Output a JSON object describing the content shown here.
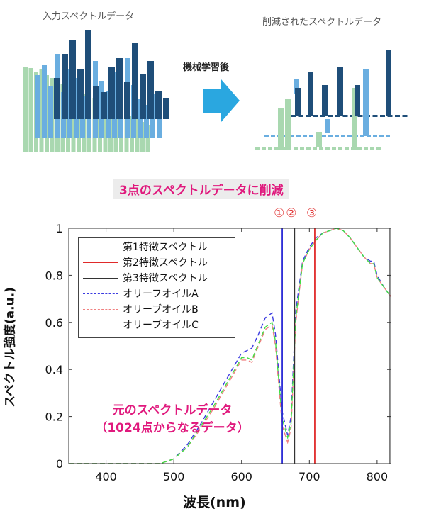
{
  "top": {
    "input_title": "入力スペクトルデータ",
    "reduced_title": "削減されたスペクトルデータ",
    "ml_label": "機械学習後",
    "banner": "3点のスペクトルデータに削減"
  },
  "markers": [
    "①",
    "②",
    "③"
  ],
  "annotation": {
    "line1": "元のスペクトルデータ",
    "line2": "（1024点からなるデータ）"
  },
  "colors": {
    "feature1": "#2a2ad6",
    "feature2": "#e02a2a",
    "feature3": "#333333",
    "oliveA": "#3a3ae0",
    "oliveB": "#f08080",
    "oliveC": "#44dd44",
    "dark_bar": "#1f4e79",
    "mid_bar": "#6aaee0",
    "light_bar": "#a9d8b0",
    "arrow": "#2aa7e0"
  },
  "chart_data": {
    "type": "line",
    "ylabel": "スペクトル強度(a.u.)",
    "xlabel": "波長(nm)",
    "xlim": [
      345,
      820
    ],
    "ylim": [
      0,
      1
    ],
    "xticks": [
      400,
      500,
      600,
      700,
      800
    ],
    "yticks": [
      0,
      0.2,
      0.4,
      0.6,
      0.8,
      1
    ],
    "ytick_labels": [
      "0",
      "0.2",
      "0.4",
      "0.6",
      "0.8",
      "1"
    ],
    "feature_lines": [
      {
        "name": "第1特徴スペクトル",
        "x": 660
      },
      {
        "name": "第2特徴スペクトル",
        "x": 708
      },
      {
        "name": "第3特徴スペクトル",
        "x": 678
      }
    ],
    "series": [
      {
        "name": "オリーフオイルA",
        "x": [
          345,
          480,
          500,
          520,
          540,
          560,
          580,
          600,
          608,
          615,
          625,
          635,
          645,
          650,
          655,
          660,
          668,
          673,
          680,
          690,
          700,
          710,
          720,
          730,
          740,
          750,
          760,
          770,
          780,
          790,
          795,
          800,
          810,
          820
        ],
        "y": [
          0,
          0,
          0.02,
          0.08,
          0.17,
          0.27,
          0.37,
          0.47,
          0.48,
          0.49,
          0.55,
          0.62,
          0.64,
          0.55,
          0.38,
          0.22,
          0.12,
          0.2,
          0.65,
          0.86,
          0.92,
          0.96,
          0.98,
          0.99,
          1.0,
          0.99,
          0.96,
          0.92,
          0.88,
          0.86,
          0.86,
          0.8,
          0.75,
          0.71
        ]
      },
      {
        "name": "オリーブオイルB",
        "x": [
          345,
          480,
          500,
          520,
          540,
          560,
          580,
          600,
          608,
          615,
          625,
          635,
          645,
          650,
          655,
          660,
          668,
          673,
          680,
          690,
          700,
          710,
          720,
          730,
          740,
          750,
          760,
          770,
          780,
          790,
          795,
          800,
          810,
          820
        ],
        "y": [
          0,
          0,
          0.02,
          0.07,
          0.15,
          0.24,
          0.34,
          0.44,
          0.44,
          0.43,
          0.5,
          0.57,
          0.59,
          0.5,
          0.33,
          0.16,
          0.09,
          0.15,
          0.6,
          0.85,
          0.91,
          0.95,
          0.98,
          0.99,
          1.0,
          0.99,
          0.96,
          0.92,
          0.88,
          0.85,
          0.85,
          0.79,
          0.75,
          0.71
        ]
      },
      {
        "name": "オリーブオイルC",
        "x": [
          345,
          480,
          500,
          520,
          540,
          560,
          580,
          600,
          608,
          615,
          625,
          635,
          645,
          650,
          655,
          660,
          668,
          673,
          680,
          690,
          700,
          710,
          720,
          730,
          740,
          750,
          760,
          770,
          780,
          790,
          795,
          800,
          810,
          820
        ],
        "y": [
          0,
          0,
          0.02,
          0.07,
          0.16,
          0.25,
          0.35,
          0.45,
          0.45,
          0.44,
          0.51,
          0.58,
          0.6,
          0.52,
          0.35,
          0.19,
          0.11,
          0.17,
          0.62,
          0.85,
          0.91,
          0.95,
          0.98,
          0.99,
          1.0,
          0.99,
          0.96,
          0.92,
          0.88,
          0.85,
          0.85,
          0.79,
          0.75,
          0.71
        ]
      }
    ],
    "legend": "top-left"
  }
}
